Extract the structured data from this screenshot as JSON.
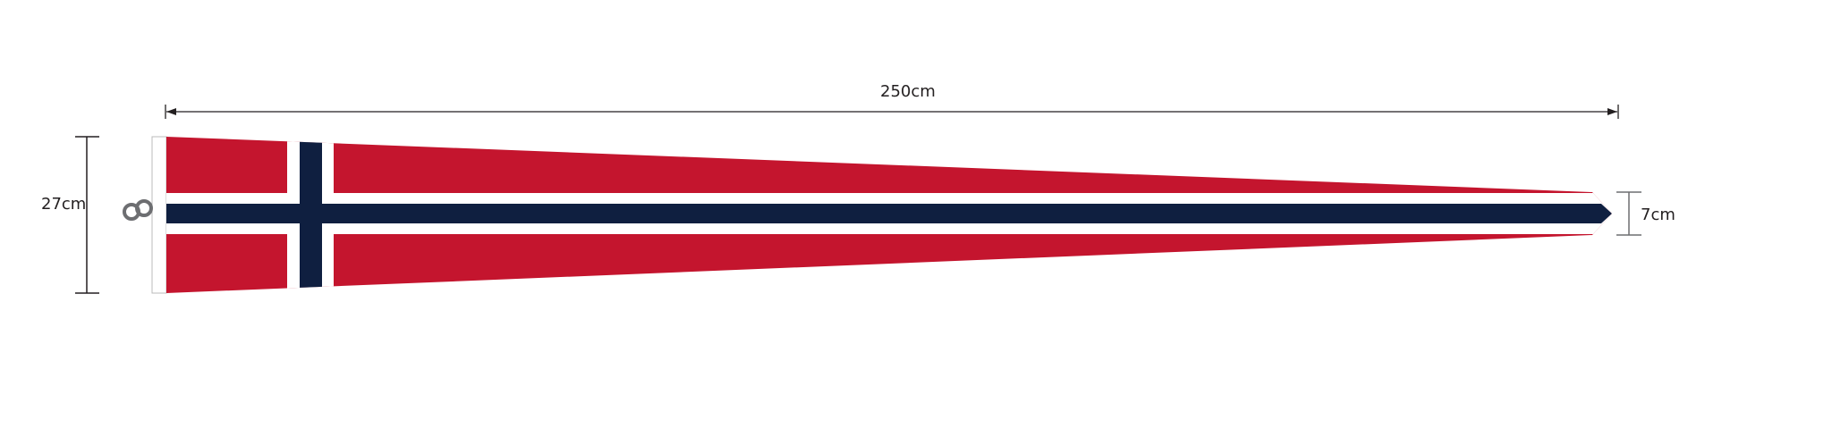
{
  "dimensions": {
    "length_label": "250cm",
    "hoist_height_label": "27cm",
    "tip_height_label": "7cm"
  },
  "colors": {
    "red": "#c4152e",
    "navy": "#0f1f40",
    "white": "#ffffff",
    "dimension_line": "#231f20",
    "clip": "#6d6e71"
  }
}
